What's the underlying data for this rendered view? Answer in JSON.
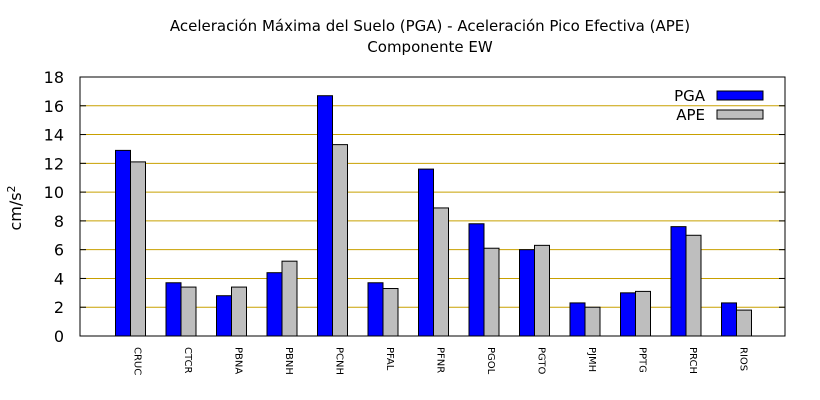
{
  "chart_data": {
    "type": "bar",
    "title": "Aceleración Máxima del Suelo (PGA) -  Aceleración Pico Efectiva (APE)",
    "subtitle": "Componente EW",
    "ylabel": "cm/s",
    "ylabel_sup": "2",
    "xlabel": "",
    "ylim": [
      0,
      18
    ],
    "yticks": [
      0,
      2,
      4,
      6,
      8,
      10,
      12,
      14,
      16,
      18
    ],
    "grid": true,
    "legend_position": "top-right",
    "categories": [
      "CRUC",
      "CTCR",
      "PBNA",
      "PBNH",
      "PCNH",
      "PFAL",
      "PFNR",
      "PGOL",
      "PGTO",
      "PJMH",
      "PPTG",
      "PRCH",
      "RIOS"
    ],
    "series": [
      {
        "name": "PGA",
        "color": "#0000ff",
        "values": [
          12.9,
          3.7,
          2.8,
          4.4,
          16.7,
          3.7,
          11.6,
          7.8,
          6.0,
          2.3,
          3.0,
          7.6,
          2.3
        ]
      },
      {
        "name": "APE",
        "color": "#bebebe",
        "values": [
          12.1,
          3.4,
          3.4,
          5.2,
          13.3,
          3.3,
          8.9,
          6.1,
          6.3,
          2.0,
          3.1,
          7.0,
          1.8
        ]
      }
    ],
    "colors": {
      "grid": "#c8a000",
      "axis": "#000000"
    }
  }
}
